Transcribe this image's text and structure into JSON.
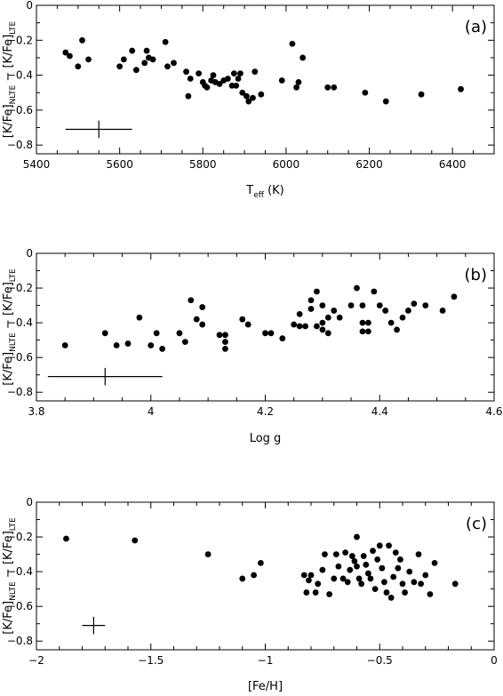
{
  "chart_data": [
    {
      "type": "scatter",
      "panel_label": "(a)",
      "xlabel_main": "T",
      "xlabel_sub": "eff",
      "xlabel_unit": "(K)",
      "ylabel_parts": [
        "[K/Fe]",
        "NLTE",
        " − [K/Fe]",
        "LTE"
      ],
      "xlim": [
        5400,
        6500
      ],
      "ylim": [
        0,
        -0.85
      ],
      "xticks": [
        5400,
        5600,
        5800,
        6000,
        6200,
        6400
      ],
      "xtick_labels": [
        "5400",
        "5600",
        "5800",
        "6000",
        "6200",
        "6400"
      ],
      "yticks": [
        0,
        -0.2,
        -0.4,
        -0.6,
        -0.8
      ],
      "ytick_labels": [
        "0",
        "−0.2",
        "−0.4",
        "−0.6",
        "−0.8"
      ],
      "errorbar": {
        "x": 5550,
        "y": -0.71,
        "xerr": 80,
        "yerr": 0.05
      },
      "points": [
        [
          5470,
          -0.27
        ],
        [
          5480,
          -0.29
        ],
        [
          5500,
          -0.35
        ],
        [
          5510,
          -0.2
        ],
        [
          5525,
          -0.31
        ],
        [
          5600,
          -0.35
        ],
        [
          5610,
          -0.31
        ],
        [
          5630,
          -0.26
        ],
        [
          5640,
          -0.37
        ],
        [
          5660,
          -0.33
        ],
        [
          5665,
          -0.26
        ],
        [
          5670,
          -0.3
        ],
        [
          5680,
          -0.31
        ],
        [
          5710,
          -0.21
        ],
        [
          5715,
          -0.35
        ],
        [
          5730,
          -0.33
        ],
        [
          5760,
          -0.38
        ],
        [
          5765,
          -0.52
        ],
        [
          5770,
          -0.42
        ],
        [
          5790,
          -0.39
        ],
        [
          5800,
          -0.44
        ],
        [
          5805,
          -0.46
        ],
        [
          5810,
          -0.47
        ],
        [
          5820,
          -0.43
        ],
        [
          5825,
          -0.4
        ],
        [
          5830,
          -0.44
        ],
        [
          5840,
          -0.45
        ],
        [
          5850,
          -0.43
        ],
        [
          5860,
          -0.42
        ],
        [
          5870,
          -0.46
        ],
        [
          5875,
          -0.39
        ],
        [
          5880,
          -0.46
        ],
        [
          5885,
          -0.42
        ],
        [
          5890,
          -0.39
        ],
        [
          5895,
          -0.5
        ],
        [
          5905,
          -0.52
        ],
        [
          5910,
          -0.55
        ],
        [
          5920,
          -0.53
        ],
        [
          5925,
          -0.38
        ],
        [
          5940,
          -0.51
        ],
        [
          5990,
          -0.43
        ],
        [
          6015,
          -0.22
        ],
        [
          6025,
          -0.47
        ],
        [
          6030,
          -0.44
        ],
        [
          6040,
          -0.3
        ],
        [
          6100,
          -0.47
        ],
        [
          6115,
          -0.47
        ],
        [
          6190,
          -0.5
        ],
        [
          6240,
          -0.55
        ],
        [
          6325,
          -0.51
        ],
        [
          6420,
          -0.48
        ]
      ]
    },
    {
      "type": "scatter",
      "panel_label": "(b)",
      "xlabel_main": "Log g",
      "ylabel_parts": [
        "[K/Fe]",
        "NLTE",
        " − [K/Fe]",
        "LTE"
      ],
      "xlim": [
        3.8,
        4.6
      ],
      "ylim": [
        0,
        -0.85
      ],
      "xticks": [
        3.8,
        4.0,
        4.2,
        4.4,
        4.6
      ],
      "xtick_labels": [
        "3.8",
        "4",
        "4.2",
        "4.4",
        "4.6"
      ],
      "yticks": [
        0,
        -0.2,
        -0.4,
        -0.6,
        -0.8
      ],
      "ytick_labels": [
        "0",
        "−0.2",
        "−0.4",
        "−0.6",
        "−0.8"
      ],
      "errorbar": {
        "x": 3.92,
        "y": -0.71,
        "xerr": 0.1,
        "yerr": 0.05
      },
      "points": [
        [
          3.85,
          -0.53
        ],
        [
          3.92,
          -0.46
        ],
        [
          3.94,
          -0.53
        ],
        [
          3.96,
          -0.52
        ],
        [
          3.98,
          -0.37
        ],
        [
          4.0,
          -0.53
        ],
        [
          4.01,
          -0.46
        ],
        [
          4.02,
          -0.55
        ],
        [
          4.05,
          -0.46
        ],
        [
          4.06,
          -0.51
        ],
        [
          4.07,
          -0.27
        ],
        [
          4.08,
          -0.38
        ],
        [
          4.09,
          -0.31
        ],
        [
          4.09,
          -0.41
        ],
        [
          4.12,
          -0.47
        ],
        [
          4.13,
          -0.47
        ],
        [
          4.13,
          -0.51
        ],
        [
          4.13,
          -0.55
        ],
        [
          4.16,
          -0.38
        ],
        [
          4.17,
          -0.41
        ],
        [
          4.2,
          -0.46
        ],
        [
          4.21,
          -0.46
        ],
        [
          4.23,
          -0.49
        ],
        [
          4.25,
          -0.41
        ],
        [
          4.26,
          -0.35
        ],
        [
          4.26,
          -0.42
        ],
        [
          4.27,
          -0.42
        ],
        [
          4.28,
          -0.32
        ],
        [
          4.28,
          -0.27
        ],
        [
          4.29,
          -0.22
        ],
        [
          4.29,
          -0.42
        ],
        [
          4.3,
          -0.3
        ],
        [
          4.3,
          -0.4
        ],
        [
          4.3,
          -0.44
        ],
        [
          4.31,
          -0.37
        ],
        [
          4.31,
          -0.46
        ],
        [
          4.32,
          -0.33
        ],
        [
          4.33,
          -0.37
        ],
        [
          4.35,
          -0.3
        ],
        [
          4.36,
          -0.2
        ],
        [
          4.37,
          -0.3
        ],
        [
          4.37,
          -0.4
        ],
        [
          4.37,
          -0.45
        ],
        [
          4.38,
          -0.4
        ],
        [
          4.38,
          -0.45
        ],
        [
          4.39,
          -0.22
        ],
        [
          4.4,
          -0.3
        ],
        [
          4.41,
          -0.33
        ],
        [
          4.42,
          -0.4
        ],
        [
          4.43,
          -0.44
        ],
        [
          4.44,
          -0.37
        ],
        [
          4.45,
          -0.33
        ],
        [
          4.46,
          -0.29
        ],
        [
          4.48,
          -0.3
        ],
        [
          4.51,
          -0.33
        ],
        [
          4.53,
          -0.25
        ]
      ]
    },
    {
      "type": "scatter",
      "panel_label": "(c)",
      "xlabel_main": "[Fe/H]",
      "ylabel_parts": [
        "[K/Fe]",
        "NLTE",
        " − [K/Fe]",
        "LTE"
      ],
      "xlim": [
        -2,
        0
      ],
      "ylim": [
        0,
        -0.85
      ],
      "xticks": [
        -2,
        -1.5,
        -1,
        -0.5,
        0
      ],
      "xtick_labels": [
        "−2",
        "−1.5",
        "−1",
        "−0.5",
        "0"
      ],
      "yticks": [
        0,
        -0.2,
        -0.4,
        -0.6,
        -0.8
      ],
      "ytick_labels": [
        "0",
        "−0.2",
        "−0.4",
        "−0.6",
        "−0.8"
      ],
      "errorbar": {
        "x": -1.75,
        "y": -0.71,
        "xerr": 0.05,
        "yerr": 0.05
      },
      "points": [
        [
          -1.87,
          -0.21
        ],
        [
          -1.57,
          -0.22
        ],
        [
          -1.25,
          -0.3
        ],
        [
          -1.1,
          -0.44
        ],
        [
          -1.05,
          -0.42
        ],
        [
          -1.02,
          -0.35
        ],
        [
          -0.83,
          -0.42
        ],
        [
          -0.82,
          -0.52
        ],
        [
          -0.81,
          -0.45
        ],
        [
          -0.8,
          -0.42
        ],
        [
          -0.78,
          -0.52
        ],
        [
          -0.77,
          -0.47
        ],
        [
          -0.75,
          -0.39
        ],
        [
          -0.74,
          -0.3
        ],
        [
          -0.72,
          -0.53
        ],
        [
          -0.7,
          -0.44
        ],
        [
          -0.69,
          -0.3
        ],
        [
          -0.68,
          -0.37
        ],
        [
          -0.66,
          -0.44
        ],
        [
          -0.65,
          -0.29
        ],
        [
          -0.64,
          -0.46
        ],
        [
          -0.63,
          -0.39
        ],
        [
          -0.62,
          -0.31
        ],
        [
          -0.61,
          -0.34
        ],
        [
          -0.6,
          -0.2
        ],
        [
          -0.6,
          -0.37
        ],
        [
          -0.59,
          -0.44
        ],
        [
          -0.58,
          -0.47
        ],
        [
          -0.57,
          -0.31
        ],
        [
          -0.56,
          -0.36
        ],
        [
          -0.55,
          -0.41
        ],
        [
          -0.54,
          -0.44
        ],
        [
          -0.53,
          -0.28
        ],
        [
          -0.52,
          -0.5
        ],
        [
          -0.51,
          -0.33
        ],
        [
          -0.5,
          -0.25
        ],
        [
          -0.49,
          -0.38
        ],
        [
          -0.48,
          -0.46
        ],
        [
          -0.47,
          -0.52
        ],
        [
          -0.46,
          -0.25
        ],
        [
          -0.45,
          -0.55
        ],
        [
          -0.44,
          -0.43
        ],
        [
          -0.43,
          -0.29
        ],
        [
          -0.42,
          -0.38
        ],
        [
          -0.41,
          -0.33
        ],
        [
          -0.4,
          -0.47
        ],
        [
          -0.39,
          -0.52
        ],
        [
          -0.37,
          -0.4
        ],
        [
          -0.35,
          -0.46
        ],
        [
          -0.33,
          -0.3
        ],
        [
          -0.32,
          -0.47
        ],
        [
          -0.3,
          -0.42
        ],
        [
          -0.28,
          -0.53
        ],
        [
          -0.26,
          -0.35
        ],
        [
          -0.17,
          -0.47
        ]
      ]
    }
  ]
}
